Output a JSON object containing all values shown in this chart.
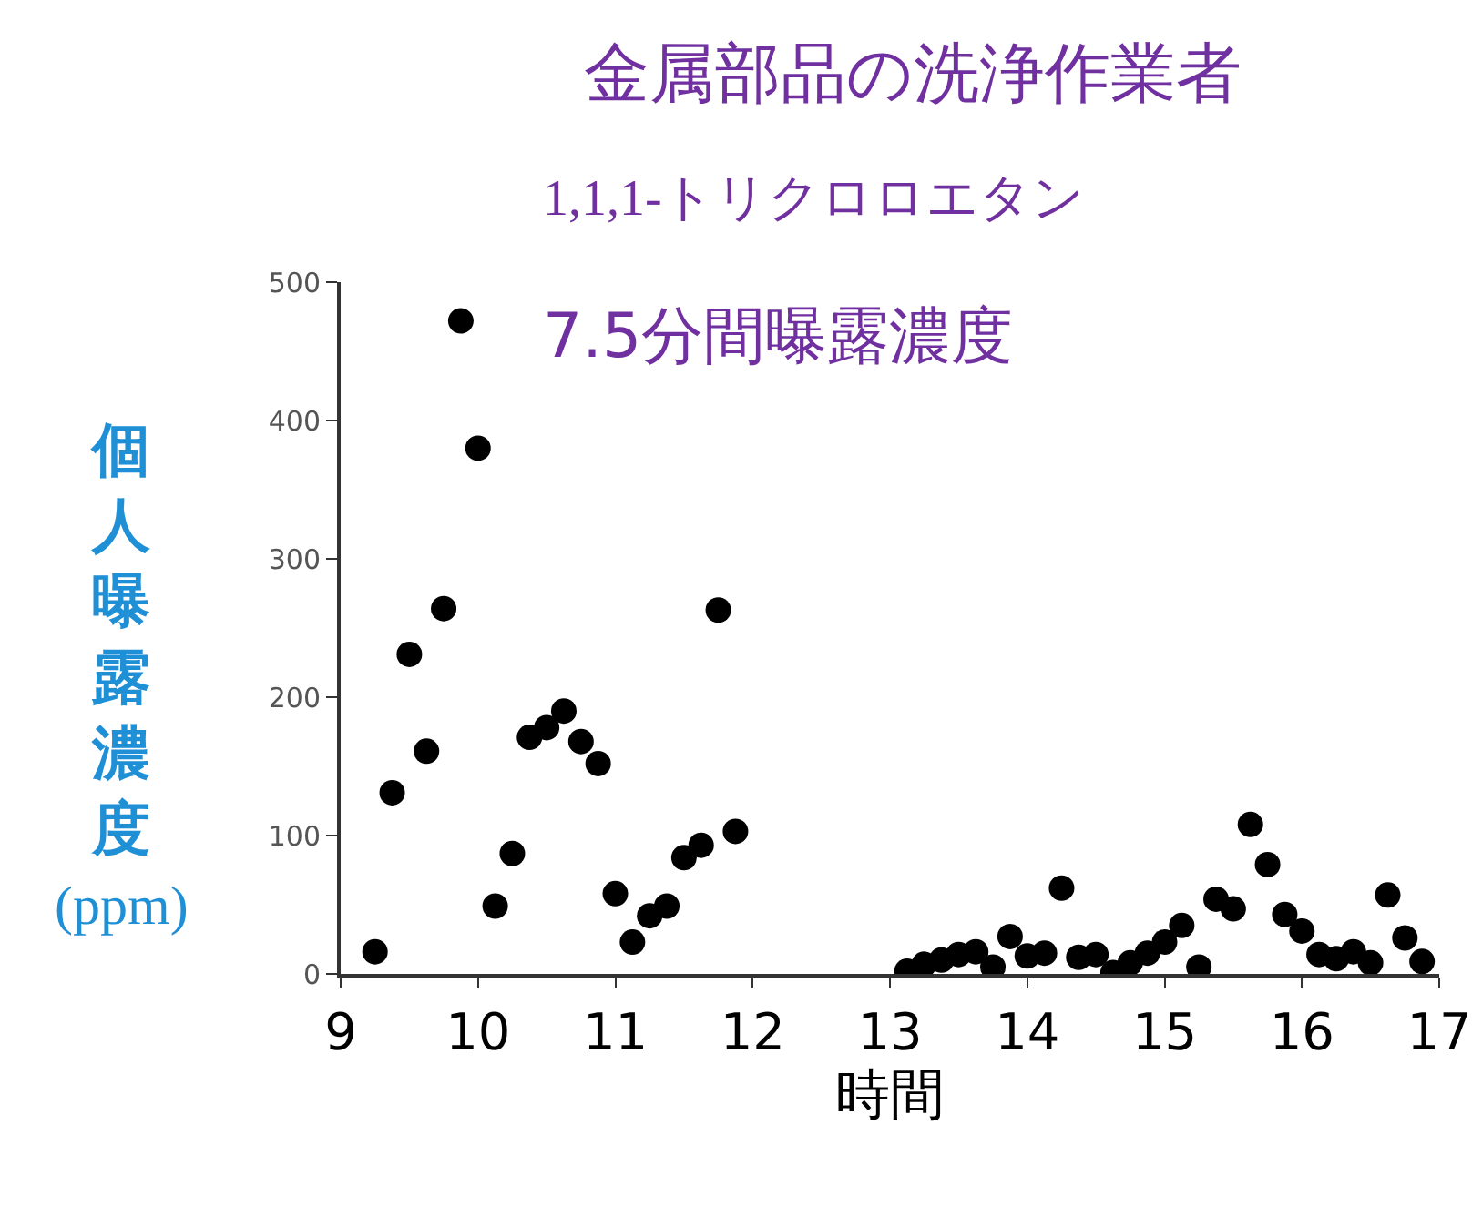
{
  "chart_data": {
    "type": "scatter",
    "title": "金属部品の洗浄作業者",
    "subtitle": "1,1,1-トリクロロエタン",
    "annotations": [
      "7.5分間曝露濃度"
    ],
    "xlabel": "時間",
    "ylabel": "個人曝露濃度(ppm)",
    "x": [
      9.25,
      9.375,
      9.5,
      9.625,
      9.75,
      9.875,
      10,
      10.125,
      10.25,
      10.375,
      10.5,
      10.625,
      10.75,
      10.875,
      11,
      11.125,
      11.25,
      11.375,
      11.5,
      11.625,
      11.75,
      11.875,
      13.125,
      13.25,
      13.375,
      13.5,
      13.625,
      13.75,
      13.875,
      14,
      14.125,
      14.25,
      14.375,
      14.5,
      14.625,
      14.75,
      14.875,
      15,
      15.125,
      15.25,
      15.375,
      15.5,
      15.625,
      15.75,
      15.875,
      16,
      16.125,
      16.25,
      16.375,
      16.5,
      16.625,
      16.75,
      16.875
    ],
    "series": [
      {
        "color": "#000000",
        "values": [
          16,
          131,
          231,
          161,
          264,
          472,
          380,
          49,
          87,
          171,
          178,
          190,
          168,
          152,
          58,
          23,
          42,
          49,
          84,
          93,
          263,
          103,
          2,
          7,
          10,
          14,
          16,
          5,
          27,
          13,
          15,
          62,
          12,
          14,
          1,
          8,
          15,
          23,
          35,
          5,
          54,
          47,
          108,
          79,
          43,
          31,
          14,
          11,
          16,
          8,
          57,
          26,
          9
        ]
      }
    ],
    "xlim": [
      9,
      17
    ],
    "xticks": [
      9,
      10,
      11,
      12,
      13,
      14,
      15,
      16,
      17
    ],
    "ylim": [
      0,
      500
    ],
    "yticks": [
      0,
      100,
      200,
      300,
      400,
      500
    ],
    "marker": "circle"
  }
}
